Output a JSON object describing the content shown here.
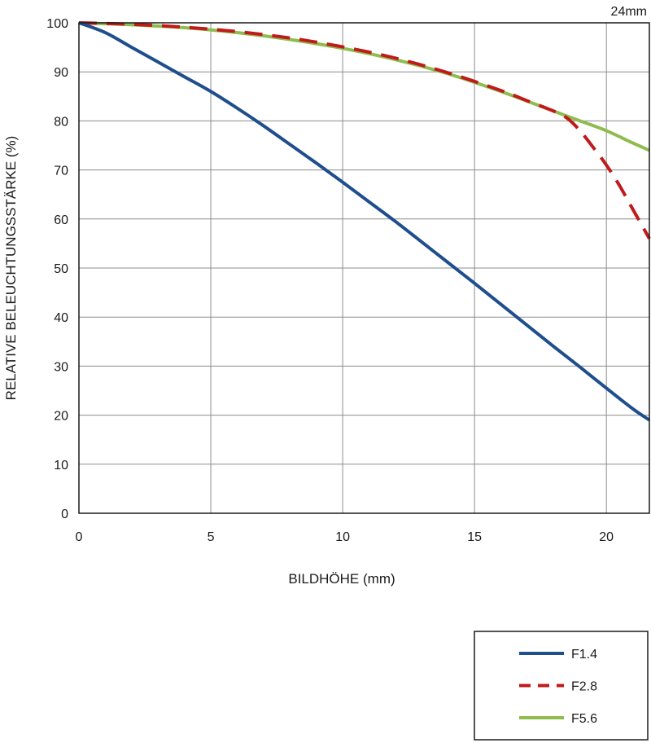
{
  "chart_data": {
    "type": "line",
    "title": "24mm",
    "xlabel": "BILDHÖHE (mm)",
    "ylabel": "RELATIVE BELEUCHTUNGSSTÄRKE (%)",
    "xlim": [
      0,
      21.63
    ],
    "ylim": [
      0,
      100
    ],
    "xticks": [
      0,
      5,
      10,
      15,
      20
    ],
    "yticks": [
      0,
      10,
      20,
      30,
      40,
      50,
      60,
      70,
      80,
      90,
      100
    ],
    "grid": true,
    "legend_position": "bottom-right",
    "series": [
      {
        "name": "F1.4",
        "color": "#1f4e8c",
        "dash": "solid",
        "x": [
          0,
          1,
          2,
          3,
          4,
          5,
          6,
          7,
          8,
          9,
          10,
          11,
          12,
          13,
          14,
          15,
          16,
          17,
          18,
          19,
          20,
          21,
          21.63
        ],
        "y": [
          100,
          98,
          95,
          92,
          89,
          86,
          82.6,
          79,
          75.2,
          71.4,
          67.5,
          63.5,
          59.5,
          55.3,
          51.1,
          46.9,
          42.6,
          38.3,
          34,
          29.8,
          25.5,
          21.3,
          19
        ]
      },
      {
        "name": "F2.8",
        "color": "#c01a1a",
        "dash": "dashed",
        "x": [
          0,
          2,
          4,
          6,
          8,
          10,
          12,
          14,
          16,
          17,
          18,
          18.5,
          19,
          19.5,
          20,
          20.5,
          21,
          21.63
        ],
        "y": [
          100,
          99.7,
          99.1,
          98.2,
          96.9,
          95.1,
          92.8,
          89.8,
          86.2,
          84.1,
          82,
          80.6,
          78,
          74.6,
          71,
          66.8,
          62,
          56
        ]
      },
      {
        "name": "F5.6",
        "color": "#8fbc4f",
        "dash": "solid",
        "x": [
          0,
          2,
          4,
          6,
          8,
          10,
          12,
          14,
          16,
          18,
          19,
          20,
          21,
          21.63
        ],
        "y": [
          100,
          99.6,
          99,
          98,
          96.6,
          94.8,
          92.5,
          89.6,
          86,
          82,
          80,
          78,
          75.5,
          74
        ]
      }
    ]
  }
}
